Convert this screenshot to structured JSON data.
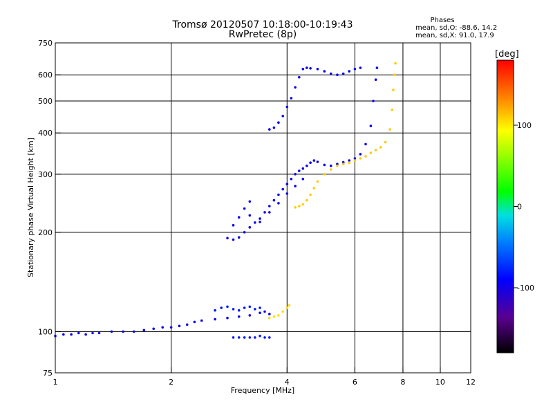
{
  "chart_data": {
    "type": "scatter",
    "title": "Tromsø 20120507 10:18:00-10:19:43",
    "subtitle": "RwPretec (8p)",
    "xlabel": "Frequency [MHz]",
    "ylabel": "Stationary phase Virtual Height [km]",
    "x_scale": "log",
    "y_scale": "log",
    "xlim": [
      1,
      12
    ],
    "ylim": [
      75,
      750
    ],
    "x_ticks": [
      1,
      2,
      4,
      6,
      8,
      10,
      12
    ],
    "y_ticks": [
      75,
      100,
      200,
      300,
      400,
      500,
      600,
      750
    ],
    "x_tick_labels": [
      "1",
      "2",
      "4",
      "6",
      "8",
      "10",
      "12"
    ],
    "y_tick_labels": [
      "75",
      "100",
      "200",
      "300",
      "400",
      "500",
      "600",
      "750"
    ],
    "grid": true,
    "stats": {
      "header": "Phases",
      "line_o": "mean, sd,O: -88.6, 14.2",
      "line_x": "mean, sd,X:  91.0, 17.9"
    },
    "colorbar": {
      "label": "[deg]",
      "min": -180,
      "max": 180,
      "ticks": [
        100,
        0,
        -100
      ],
      "tick_labels": [
        "100",
        "0",
        "-100"
      ]
    },
    "series": [
      {
        "phase_deg": -95,
        "points": [
          [
            1.0,
            97
          ],
          [
            1.05,
            98
          ],
          [
            1.1,
            98
          ],
          [
            1.15,
            99
          ],
          [
            1.2,
            98
          ],
          [
            1.25,
            99
          ],
          [
            1.3,
            99
          ],
          [
            1.4,
            100
          ],
          [
            1.5,
            100
          ],
          [
            1.6,
            100
          ],
          [
            1.7,
            101
          ],
          [
            1.8,
            102
          ],
          [
            1.9,
            103
          ],
          [
            2.0,
            103
          ],
          [
            2.1,
            104
          ],
          [
            2.2,
            105
          ],
          [
            2.3,
            107
          ],
          [
            2.4,
            108
          ],
          [
            2.6,
            109
          ],
          [
            2.8,
            110
          ],
          [
            3.0,
            111
          ],
          [
            3.2,
            112
          ],
          [
            3.4,
            114
          ],
          [
            3.5,
            115
          ],
          [
            3.6,
            113
          ]
        ]
      },
      {
        "phase_deg": -80,
        "points": [
          [
            2.6,
            116
          ],
          [
            2.7,
            118
          ],
          [
            2.8,
            119
          ],
          [
            2.9,
            117
          ],
          [
            3.0,
            116
          ],
          [
            3.1,
            118
          ],
          [
            3.2,
            119
          ],
          [
            3.3,
            117
          ],
          [
            3.4,
            118
          ],
          [
            2.9,
            96
          ],
          [
            3.0,
            96
          ],
          [
            3.1,
            96
          ],
          [
            3.2,
            96
          ],
          [
            3.3,
            96
          ],
          [
            3.4,
            97
          ],
          [
            3.5,
            96
          ],
          [
            3.6,
            96
          ]
        ]
      },
      {
        "phase_deg": 105,
        "points": [
          [
            3.6,
            110
          ],
          [
            3.7,
            111
          ],
          [
            3.8,
            112
          ],
          [
            3.9,
            115
          ],
          [
            4.0,
            118
          ],
          [
            4.05,
            120
          ]
        ]
      },
      {
        "phase_deg": -95,
        "points": [
          [
            2.8,
            192
          ],
          [
            2.9,
            190
          ],
          [
            3.0,
            193
          ],
          [
            3.1,
            200
          ],
          [
            3.2,
            207
          ],
          [
            3.3,
            214
          ],
          [
            3.4,
            220
          ],
          [
            3.5,
            230
          ],
          [
            3.6,
            240
          ],
          [
            3.7,
            250
          ],
          [
            3.8,
            260
          ],
          [
            3.9,
            270
          ],
          [
            4.0,
            280
          ],
          [
            4.1,
            290
          ],
          [
            4.2,
            300
          ],
          [
            4.3,
            307
          ],
          [
            4.4,
            312
          ],
          [
            4.5,
            318
          ],
          [
            4.6,
            325
          ],
          [
            4.7,
            330
          ],
          [
            4.8,
            327
          ],
          [
            5.0,
            320
          ],
          [
            5.2,
            318
          ],
          [
            5.4,
            322
          ],
          [
            5.6,
            326
          ],
          [
            5.8,
            330
          ],
          [
            6.0,
            335
          ],
          [
            6.2,
            345
          ],
          [
            6.4,
            370
          ],
          [
            6.6,
            420
          ],
          [
            6.7,
            500
          ],
          [
            6.8,
            580
          ],
          [
            6.85,
            630
          ],
          [
            3.2,
            225
          ],
          [
            3.4,
            215
          ],
          [
            3.6,
            230
          ],
          [
            3.8,
            245
          ],
          [
            4.0,
            262
          ],
          [
            4.2,
            276
          ],
          [
            4.4,
            290
          ],
          [
            2.9,
            210
          ],
          [
            3.0,
            222
          ],
          [
            3.1,
            236
          ],
          [
            3.2,
            248
          ]
        ]
      },
      {
        "phase_deg": 110,
        "points": [
          [
            4.2,
            238
          ],
          [
            4.3,
            240
          ],
          [
            4.4,
            243
          ],
          [
            4.5,
            250
          ],
          [
            4.6,
            260
          ],
          [
            4.7,
            272
          ],
          [
            4.8,
            285
          ],
          [
            5.0,
            300
          ],
          [
            5.2,
            310
          ],
          [
            5.4,
            318
          ],
          [
            5.6,
            322
          ],
          [
            5.8,
            325
          ],
          [
            6.0,
            330
          ],
          [
            6.2,
            335
          ],
          [
            6.4,
            340
          ],
          [
            6.6,
            348
          ],
          [
            6.8,
            355
          ],
          [
            7.0,
            362
          ],
          [
            7.2,
            375
          ],
          [
            7.4,
            410
          ],
          [
            7.5,
            470
          ],
          [
            7.55,
            540
          ],
          [
            7.6,
            600
          ],
          [
            7.65,
            650
          ]
        ]
      },
      {
        "phase_deg": -95,
        "points": [
          [
            3.6,
            410
          ],
          [
            3.7,
            415
          ],
          [
            3.8,
            430
          ],
          [
            3.9,
            450
          ],
          [
            4.0,
            480
          ],
          [
            4.1,
            510
          ],
          [
            4.2,
            550
          ],
          [
            4.3,
            590
          ],
          [
            4.4,
            625
          ],
          [
            4.5,
            630
          ],
          [
            4.6,
            628
          ],
          [
            4.8,
            625
          ],
          [
            5.0,
            615
          ],
          [
            5.2,
            605
          ],
          [
            5.4,
            600
          ],
          [
            5.6,
            605
          ],
          [
            5.8,
            615
          ],
          [
            6.0,
            625
          ],
          [
            6.2,
            630
          ]
        ]
      }
    ]
  }
}
